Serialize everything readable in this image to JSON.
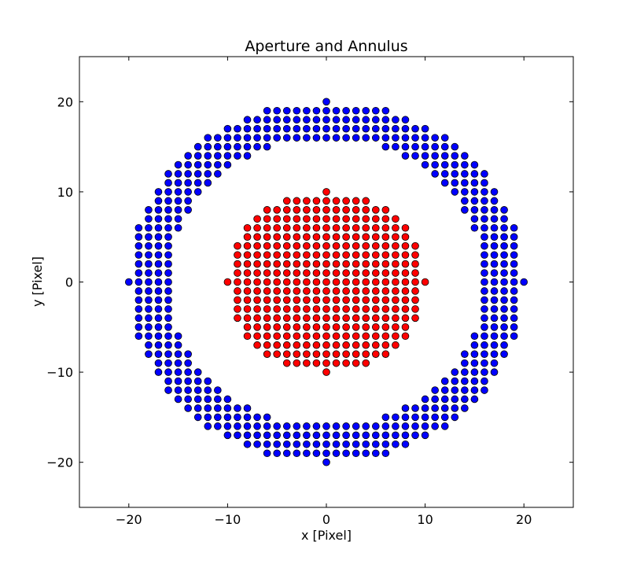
{
  "chart_data": {
    "type": "scatter",
    "title": "Aperture and Annulus",
    "xlabel": "x [Pixel]",
    "ylabel": "y [Pixel]",
    "xlim": [
      -25,
      25
    ],
    "ylim": [
      -25,
      25
    ],
    "xticks": [
      -20,
      -10,
      0,
      10,
      20
    ],
    "yticks": [
      -20,
      -10,
      0,
      10,
      20
    ],
    "xtick_labels": [
      "−20",
      "−10",
      "0",
      "10",
      "20"
    ],
    "ytick_labels": [
      "−20",
      "−10",
      "0",
      "10",
      "20"
    ],
    "grid": false,
    "legend": "none",
    "series": [
      {
        "color": "#0000ff",
        "generator": "integer grid points with 256 <= x^2 + y^2 <= 400",
        "r_min": 16,
        "r_max": 20
      },
      {
        "color": "#ff0000",
        "generator": "integer grid points with x^2 + y^2 <= 100",
        "r_min": 0,
        "r_max": 10
      }
    ]
  }
}
